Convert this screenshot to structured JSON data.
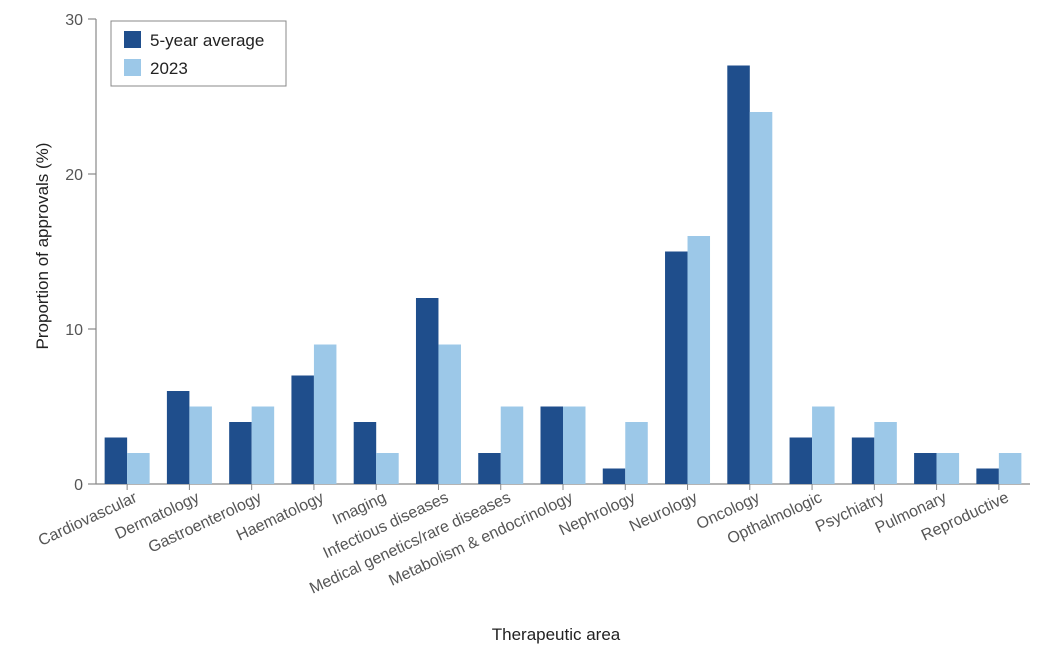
{
  "chart_data": {
    "type": "bar",
    "title": "",
    "xlabel": "Therapeutic area",
    "ylabel": "Proportion of approvals (%)",
    "ylim": [
      0,
      30
    ],
    "yticks": [
      0,
      10,
      20,
      30
    ],
    "grid": false,
    "legend_position": "top-left",
    "categories": [
      "Cardiovascular",
      "Dermatology",
      "Gastroenterology",
      "Haematology",
      "Imaging",
      "Infectious diseases",
      "Medical genetics/rare diseases",
      "Metabolism & endocrinology",
      "Nephrology",
      "Neurology",
      "Oncology",
      "Opthalmologic",
      "Psychiatry",
      "Pulmonary",
      "Reproductive"
    ],
    "series": [
      {
        "name": "5-year average",
        "color": "#1f4e8c",
        "values": [
          3,
          6,
          4,
          7,
          4,
          12,
          2,
          5,
          1,
          15,
          27,
          3,
          3,
          2,
          1
        ]
      },
      {
        "name": "2023",
        "color": "#9cc8e8",
        "values": [
          2,
          5,
          5,
          9,
          2,
          9,
          5,
          5,
          4,
          16,
          24,
          5,
          4,
          2,
          2
        ]
      }
    ]
  }
}
